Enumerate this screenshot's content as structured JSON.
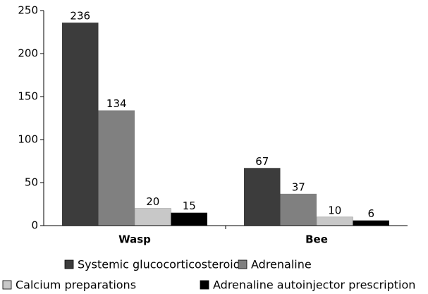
{
  "chart_data": {
    "type": "bar",
    "categories": [
      "Wasp",
      "Bee"
    ],
    "series": [
      {
        "name": "Systemic glucocorticosteroids",
        "color": "#3c3c3c",
        "values": [
          236,
          67
        ]
      },
      {
        "name": "Adrenaline",
        "color": "#808080",
        "values": [
          134,
          37
        ]
      },
      {
        "name": "Calcium preparations",
        "color": "#c8c8c8",
        "values": [
          20,
          10
        ]
      },
      {
        "name": "Adrenaline autoinjector prescription",
        "color": "#000000",
        "values": [
          15,
          6
        ]
      }
    ],
    "ylim": [
      0,
      250
    ],
    "yticks": [
      0,
      50,
      100,
      150,
      200,
      250
    ],
    "grid": false,
    "legend": "bottom"
  }
}
